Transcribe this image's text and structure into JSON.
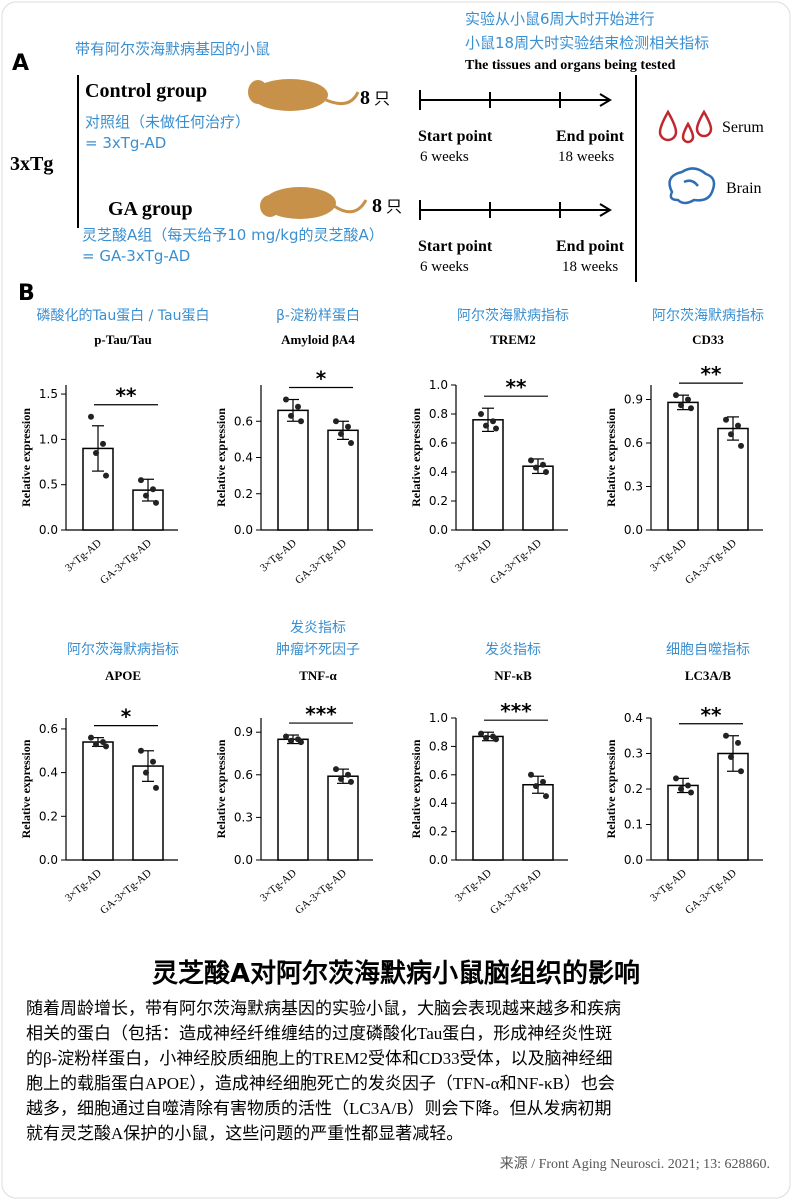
{
  "panel_a": {
    "label": "A",
    "mouse_note": "带有阿尔茨海默病基因的小鼠",
    "model": "3xTg",
    "header": [
      "实验从小鼠6周大时开始进行",
      "小鼠18周大时实验结束检测相关指标",
      "The tissues and organs being tested"
    ],
    "groups": [
      {
        "name": "Control group",
        "count": 8,
        "unit": "只",
        "note": "对照组（未做任何治疗）",
        "alias": "= 3xTg-AD",
        "start": "Start point",
        "start_time": "6 weeks",
        "end": "End point",
        "end_time": "18 weeks"
      },
      {
        "name": "GA group",
        "count": 8,
        "unit": "只",
        "note": "灵芝酸A组（每天给予10 mg/kg的灵芝酸A）",
        "alias": "= GA-3xTg-AD",
        "start": "Start point",
        "start_time": "6 weeks",
        "end": "End point",
        "end_time": "18 weeks"
      }
    ],
    "tissues": [
      "Serum",
      "Brain"
    ]
  },
  "panel_b_label": "B",
  "chart_data": [
    {
      "type": "bar",
      "annotation": [
        "磷酸化的Tau蛋白 / Tau蛋白"
      ],
      "title": "p-Tau/Tau",
      "ylabel": "Relative expression",
      "categories": [
        "3×Tg-AD",
        "GA-3×Tg-AD"
      ],
      "values": [
        0.9,
        0.44
      ],
      "errors": [
        0.25,
        0.12
      ],
      "points": [
        [
          1.25,
          0.95,
          0.85,
          0.6
        ],
        [
          0.55,
          0.45,
          0.38,
          0.3
        ]
      ],
      "significance": "**",
      "ylim": [
        0,
        1.6
      ],
      "yticks": [
        {
          "value": 0,
          "label": "0.0"
        },
        0.5,
        {
          "value": 1,
          "label": "1.0"
        },
        1.5
      ]
    },
    {
      "type": "bar",
      "annotation": [
        "β-淀粉样蛋白"
      ],
      "title": "Amyloid βA4",
      "ylabel": "Relative expression",
      "categories": [
        "3×Tg-AD",
        "GA-3×Tg-AD"
      ],
      "values": [
        0.66,
        0.55
      ],
      "errors": [
        0.06,
        0.05
      ],
      "points": [
        [
          0.72,
          0.68,
          0.63,
          0.6
        ],
        [
          0.6,
          0.57,
          0.53,
          0.48
        ]
      ],
      "significance": "*",
      "ylim": [
        0,
        0.8
      ],
      "yticks": [
        {
          "value": 0,
          "label": "0.0"
        },
        0.2,
        0.4,
        0.6
      ]
    },
    {
      "type": "bar",
      "annotation": [
        "阿尔茨海默病指标"
      ],
      "title": "TREM2",
      "ylabel": "Relative expression",
      "categories": [
        "3×Tg-AD",
        "GA-3×Tg-AD"
      ],
      "values": [
        0.76,
        0.44
      ],
      "errors": [
        0.08,
        0.05
      ],
      "points": [
        [
          0.8,
          0.75,
          0.72,
          0.7
        ],
        [
          0.48,
          0.45,
          0.43,
          0.4
        ]
      ],
      "significance": "**",
      "ylim": [
        0,
        1.0
      ],
      "yticks": [
        {
          "value": 0,
          "label": "0.0"
        },
        0.2,
        0.4,
        0.6,
        0.8,
        {
          "value": 1,
          "label": "1.0"
        }
      ]
    },
    {
      "type": "bar",
      "annotation": [
        "阿尔茨海默病指标"
      ],
      "title": "CD33",
      "ylabel": "Relative expression",
      "categories": [
        "3×Tg-AD",
        "GA-3×Tg-AD"
      ],
      "values": [
        0.88,
        0.7
      ],
      "errors": [
        0.05,
        0.08
      ],
      "points": [
        [
          0.93,
          0.9,
          0.86,
          0.84
        ],
        [
          0.76,
          0.72,
          0.66,
          0.58
        ]
      ],
      "significance": "**",
      "ylim": [
        0,
        1.0
      ],
      "yticks": [
        {
          "value": 0,
          "label": "0.0"
        },
        0.3,
        0.6,
        0.9
      ]
    },
    {
      "type": "bar",
      "annotation": [
        "阿尔茨海默病指标"
      ],
      "title": "APOE",
      "ylabel": "Relative expression",
      "categories": [
        "3×Tg-AD",
        "GA-3×Tg-AD"
      ],
      "values": [
        0.54,
        0.43
      ],
      "errors": [
        0.02,
        0.07
      ],
      "points": [
        [
          0.56,
          0.54,
          0.53,
          0.52
        ],
        [
          0.5,
          0.45,
          0.4,
          0.33
        ]
      ],
      "significance": "*",
      "ylim": [
        0,
        0.65
      ],
      "yticks": [
        {
          "value": 0,
          "label": "0.0"
        },
        0.2,
        0.4,
        0.6
      ]
    },
    {
      "type": "bar",
      "annotation": [
        "发炎指标",
        "肿瘤坏死因子"
      ],
      "title": "TNF-α",
      "ylabel": "Relative expression",
      "categories": [
        "3×Tg-AD",
        "GA-3×Tg-AD"
      ],
      "values": [
        0.85,
        0.59
      ],
      "errors": [
        0.03,
        0.05
      ],
      "points": [
        [
          0.87,
          0.85,
          0.84,
          0.83
        ],
        [
          0.64,
          0.6,
          0.57,
          0.55
        ]
      ],
      "significance": "***",
      "ylim": [
        0,
        1.0
      ],
      "yticks": [
        {
          "value": 0,
          "label": "0.0"
        },
        0.3,
        0.6,
        0.9
      ]
    },
    {
      "type": "bar",
      "annotation": [
        "发炎指标"
      ],
      "title": "NF-κB",
      "ylabel": "Relative expression",
      "categories": [
        "3×Tg-AD",
        "GA-3×Tg-AD"
      ],
      "values": [
        0.87,
        0.53
      ],
      "errors": [
        0.03,
        0.06
      ],
      "points": [
        [
          0.89,
          0.87,
          0.86,
          0.85
        ],
        [
          0.6,
          0.55,
          0.52,
          0.45
        ]
      ],
      "significance": "***",
      "ylim": [
        0,
        1.0
      ],
      "yticks": [
        {
          "value": 0,
          "label": "0.0"
        },
        0.2,
        0.4,
        0.6,
        0.8,
        {
          "value": 1,
          "label": "1.0"
        }
      ]
    },
    {
      "type": "bar",
      "annotation": [
        "细胞自噬指标"
      ],
      "title": "LC3A/B",
      "ylabel": "Relative expression",
      "categories": [
        "3×Tg-AD",
        "GA-3×Tg-AD"
      ],
      "values": [
        0.21,
        0.3
      ],
      "errors": [
        0.02,
        0.05
      ],
      "points": [
        [
          0.23,
          0.21,
          0.2,
          0.19
        ],
        [
          0.35,
          0.33,
          0.29,
          0.25
        ]
      ],
      "significance": "**",
      "ylim": [
        0,
        0.4
      ],
      "yticks": [
        {
          "value": 0,
          "label": "0.0"
        },
        0.1,
        0.2,
        0.3,
        0.4
      ]
    }
  ],
  "caption": {
    "title": "灵芝酸A对阿尔茨海默病小鼠脑组织的影响",
    "body": [
      "随着周龄增长，带有阿尔茨海默病基因的实验小鼠，大脑会表现越来越多和疾病",
      "相关的蛋白（包括：造成神经纤维缠结的过度磷酸化Tau蛋白，形成神经炎性斑",
      "的β-淀粉样蛋白，小神经胶质细胞上的TREM2受体和CD33受体，以及脑神经细",
      "胞上的载脂蛋白APOE），造成神经细胞死亡的发炎因子（TFN-α和NF-κB）也会",
      "越多，细胞通过自噬清除有害物质的活性（LC3A/B）则会下降。但从发病初期",
      "就有灵芝酸A保护的小鼠，这些问题的严重性都显著减轻。"
    ],
    "source": "来源 / Front Aging Neurosci. 2021; 13: 628860."
  }
}
